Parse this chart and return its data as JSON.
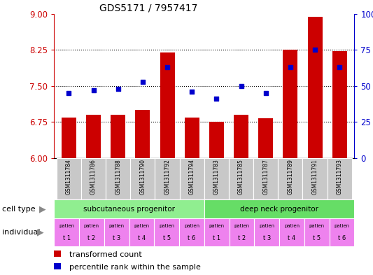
{
  "title": "GDS5171 / 7957417",
  "samples": [
    "GSM1311784",
    "GSM1311786",
    "GSM1311788",
    "GSM1311790",
    "GSM1311792",
    "GSM1311794",
    "GSM1311783",
    "GSM1311785",
    "GSM1311787",
    "GSM1311789",
    "GSM1311791",
    "GSM1311793"
  ],
  "transformed_counts": [
    6.85,
    6.9,
    6.9,
    7.0,
    8.2,
    6.85,
    6.75,
    6.9,
    6.83,
    8.25,
    8.93,
    8.22
  ],
  "percentile_ranks": [
    45,
    47,
    48,
    53,
    63,
    46,
    41,
    50,
    45,
    63,
    75,
    63
  ],
  "ylim_left": [
    6,
    9
  ],
  "ylim_right": [
    0,
    100
  ],
  "yticks_left": [
    6,
    6.75,
    7.5,
    8.25,
    9
  ],
  "yticks_right": [
    0,
    25,
    50,
    75,
    100
  ],
  "bar_color": "#CC0000",
  "dot_color": "#0000CC",
  "bar_bottom": 6,
  "cell_type_groups": [
    {
      "label": "subcutaneous progenitor",
      "start": 0,
      "end": 6,
      "color": "#90EE90"
    },
    {
      "label": "deep neck progenitor",
      "start": 6,
      "end": 12,
      "color": "#66DD66"
    }
  ],
  "individuals": [
    "t 1",
    "t 2",
    "t 3",
    "t 4",
    "t 5",
    "t 6",
    "t 1",
    "t 2",
    "t 3",
    "t 4",
    "t 5",
    "t 6"
  ],
  "individual_bg_color": "#EE82EE",
  "xtick_bg_color": "#C8C8C8",
  "bar_color_legend": "#CC0000",
  "dot_color_legend": "#0000CC",
  "xlabel_color": "#CC0000",
  "right_axis_color": "#0000CC",
  "fig_width": 5.33,
  "fig_height": 3.93,
  "dpi": 100
}
